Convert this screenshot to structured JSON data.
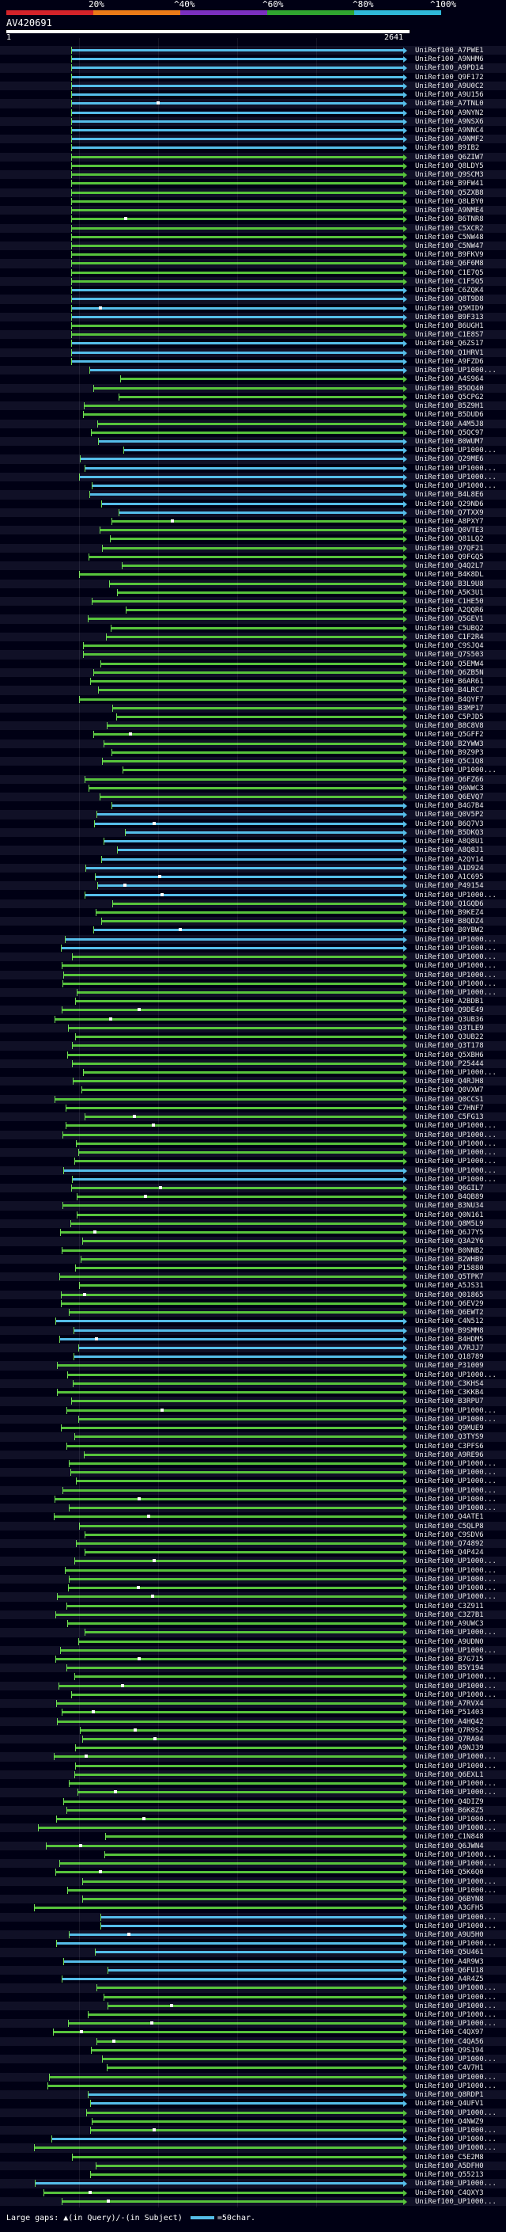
{
  "scale": {
    "labels": [
      "20%",
      "^40%",
      "^60%",
      "^80%",
      "^100%"
    ],
    "colors": [
      "#d4232a",
      "#ea7a18",
      "#7b2fbf",
      "#2fa52f",
      "#2fb8d8"
    ]
  },
  "query": {
    "id": "AV420691",
    "start": "1",
    "end": "2641"
  },
  "colors": {
    "green": "#57c33c",
    "cyan": "#55bde9",
    "magenta": "#d14cd1",
    "background": "#000014"
  },
  "hits": [
    "UniRef100_A7PWE1",
    "UniRef100_A9NHM6",
    "UniRef100_A9PD14",
    "UniRef100_Q9F172",
    "UniRef100_A9U0C2",
    "UniRef100_A9U156",
    "UniRef100_A7TNL0",
    "UniRef100_A9NYN2",
    "UniRef100_A9NSX6",
    "UniRef100_A9NNC4",
    "UniRef100_A9NMF2",
    "UniRef100_B9IB2",
    "UniRef100_Q6ZIW7",
    "UniRef100_Q8LDY5",
    "UniRef100_Q9SCM3",
    "UniRef100_B9FW41",
    "UniRef100_Q5ZXB8",
    "UniRef100_Q8LBY0",
    "UniRef100_A9NME4",
    "UniRef100_B6TNR8",
    "UniRef100_C5XCR2",
    "UniRef100_C5NW48",
    "UniRef100_C5NW47",
    "UniRef100_B9FKV9",
    "UniRef100_Q6F6M8",
    "UniRef100_C1E7Q5",
    "UniRef100_C1F5Q5",
    "UniRef100_C6ZQK4",
    "UniRef100_Q8T9D8",
    "UniRef100_Q5MID9",
    "UniRef100_B9F313",
    "UniRef100_B6UGH1",
    "UniRef100_C1E8S7",
    "UniRef100_Q6ZS17",
    "UniRef100_Q1HRV1",
    "UniRef100_A9FZD6",
    "UniRef100_UP1000...",
    "UniRef100_A4S964",
    "UniRef100_B5OQ40",
    "UniRef100_Q5CPG2",
    "UniRef100_B5Z9H1",
    "UniRef100_B5DUD6",
    "UniRef100_A4M5J8",
    "UniRef100_Q5QC97",
    "UniRef100_B0WUM7",
    "UniRef100_UP1000...",
    "UniRef100_Q29ME6",
    "UniRef100_UP1000...",
    "UniRef100_UP1000...",
    "UniRef100_UP1000...",
    "UniRef100_B4L8E6",
    "UniRef100_Q29ND6",
    "UniRef100_Q7TXX9",
    "UniRef100_A8PXY7",
    "UniRef100_Q0VTE3",
    "UniRef100_Q81LQ2",
    "UniRef100_Q7QF21",
    "UniRef100_Q9FGQ5",
    "UniRef100_Q4Q2L7",
    "UniRef100_B4K8DL",
    "UniRef100_B3L9U8",
    "UniRef100_A5K3U1",
    "UniRef100_C1HE50",
    "UniRef100_A2QQR6",
    "UniRef100_Q5GEV1",
    "UniRef100_C5UBQ2",
    "UniRef100_C1F2R4",
    "UniRef100_C9SJQ4",
    "UniRef100_Q7S503",
    "UniRef100_Q5EMW4",
    "UniRef100_Q6ZB5N",
    "UniRef100_B6AR61",
    "UniRef100_B4LRC7",
    "UniRef100_B4QYF7",
    "UniRef100_B3MP17",
    "UniRef100_C5PJD5",
    "UniRef100_B8C8V8",
    "UniRef100_Q5GFF2",
    "UniRef100_B2YWW3",
    "UniRef100_B9Z9P3",
    "UniRef100_Q5C1Q8",
    "UniRef100_UP1000...",
    "UniRef100_Q6FZ66",
    "UniRef100_Q6NWC3",
    "UniRef100_Q6EVQ7",
    "UniRef100_B4G7B4",
    "UniRef100_Q0V5P2",
    "UniRef100_B6Q7V3",
    "UniRef100_B5DKQ3",
    "UniRef100_A8Q8U1",
    "UniRef100_A8Q8J1",
    "UniRef100_A2QY14",
    "UniRef100_A1D924",
    "UniRef100_A1C695",
    "UniRef100_P49154",
    "UniRef100_UP1000...",
    "UniRef100_Q1GQD6",
    "UniRef100_B9KEZ4",
    "UniRef100_B8QDZ4",
    "UniRef100_B0YBW2",
    "UniRef100_UP1000...",
    "UniRef100_UP1000...",
    "UniRef100_UP1000...",
    "UniRef100_UP1000...",
    "UniRef100_UP1000...",
    "UniRef100_UP1000...",
    "UniRef100_UP1000...",
    "UniRef100_A2BDB1",
    "UniRef100_Q9DE49",
    "UniRef100_Q3UB36",
    "UniRef100_Q3TLE9",
    "UniRef100_Q3UB22",
    "UniRef100_Q3T178",
    "UniRef100_Q5XBH6",
    "UniRef100_P25444",
    "UniRef100_UP1000...",
    "UniRef100_Q4RJH8",
    "UniRef100_Q0VXW7",
    "UniRef100_Q0CCS1",
    "UniRef100_C7HNF7",
    "UniRef100_C5FG13",
    "UniRef100_UP1000...",
    "UniRef100_UP1000...",
    "UniRef100_UP1000...",
    "UniRef100_UP1000...",
    "UniRef100_UP1000...",
    "UniRef100_UP1000...",
    "UniRef100_UP1000...",
    "UniRef100_Q6GIL7",
    "UniRef100_B4QB89",
    "UniRef100_B3NU34",
    "UniRef100_Q0N161",
    "UniRef100_Q8M5L9",
    "UniRef100_Q6J7Y5",
    "UniRef100_Q3A2Y6",
    "UniRef100_B0NNB2",
    "UniRef100_B2WHB9",
    "UniRef100_P15880",
    "UniRef100_Q5TPK7",
    "UniRef100_A5JS31",
    "UniRef100_Q01865",
    "UniRef100_Q6EV29",
    "UniRef100_Q6EWT2",
    "UniRef100_C4N512",
    "UniRef100_B9SMM8",
    "UniRef100_B4HDM5",
    "UniRef100_A7RJJ7",
    "UniRef100_Q18789",
    "UniRef100_P31009",
    "UniRef100_UP1000...",
    "UniRef100_C3KHS4",
    "UniRef100_C3KKB4",
    "UniRef100_B3RPU7",
    "UniRef100_UP1000...",
    "UniRef100_UP1000...",
    "UniRef100_Q9MUE9",
    "UniRef100_Q3TYS9",
    "UniRef100_C3PFS6",
    "UniRef100_A9RE96",
    "UniRef100_UP1000...",
    "UniRef100_UP1000...",
    "UniRef100_UP1000...",
    "UniRef100_UP1000...",
    "UniRef100_UP1000...",
    "UniRef100_UP1000...",
    "UniRef100_Q4ATE1",
    "UniRef100_C5QLP8",
    "UniRef100_C9SDV6",
    "UniRef100_Q74892",
    "UniRef100_Q4P424",
    "UniRef100_UP1000...",
    "UniRef100_UP1000...",
    "UniRef100_UP1000...",
    "UniRef100_UP1000...",
    "UniRef100_UP1000...",
    "UniRef100_C3Z911",
    "UniRef100_C3Z7B1",
    "UniRef100_A9UWC3",
    "UniRef100_UP1000...",
    "UniRef100_A9UDN0",
    "UniRef100_UP1000...",
    "UniRef100_B7G715",
    "UniRef100_B5Y194",
    "UniRef100_UP1000...",
    "UniRef100_UP1000...",
    "UniRef100_UP1000...",
    "UniRef100_A7RVX4",
    "UniRef100_P51403",
    "UniRef100_A4HQ42",
    "UniRef100_Q7R9S2",
    "UniRef100_Q7RA04",
    "UniRef100_A9NJ39",
    "UniRef100_UP1000...",
    "UniRef100_UP1000...",
    "UniRef100_Q6EXL1",
    "UniRef100_UP1000...",
    "UniRef100_UP1000...",
    "UniRef100_Q4DIZ9",
    "UniRef100_B6K8Z5",
    "UniRef100_UP1000...",
    "UniRef100_UP1000...",
    "UniRef100_C1N848",
    "UniRef100_Q6JWN4",
    "UniRef100_UP1000...",
    "UniRef100_UP1000...",
    "UniRef100_Q5K6Q0",
    "UniRef100_UP1000...",
    "UniRef100_UP1000...",
    "UniRef100_Q6BYN8",
    "UniRef100_A3GFH5",
    "UniRef100_UP1000...",
    "UniRef100_UP1000...",
    "UniRef100_A9U5H0",
    "UniRef100_UP1000...",
    "UniRef100_Q5U461",
    "UniRef100_A4R9W3",
    "UniRef100_Q6FU18",
    "UniRef100_A4R4Z5",
    "UniRef100_UP1000...",
    "UniRef100_UP1000...",
    "UniRef100_UP1000...",
    "UniRef100_UP1000...",
    "UniRef100_UP1000...",
    "UniRef100_C4QX97",
    "UniRef100_C4QA56",
    "UniRef100_Q9S194",
    "UniRef100_UP1000...",
    "UniRef100_C4V7H1",
    "UniRef100_UP1000...",
    "UniRef100_UP1000...",
    "UniRef100_Q8RDP1",
    "UniRef100_Q4UFV1",
    "UniRef100_UP1000...",
    "UniRef100_Q4NWZ9",
    "UniRef100_UP1000...",
    "UniRef100_UP1000...",
    "UniRef100_UP1000...",
    "UniRef100_C5E2M8",
    "UniRef100_A5DFH0",
    "UniRef100_Q55213",
    "UniRef100_UP1000...",
    "UniRef100_C4QXY3",
    "UniRef100_UP1000..."
  ],
  "footer": {
    "prefix": "Large gaps:",
    "query_mark": "▲",
    "query_text": "(in Query)/",
    "subject_mark": "-",
    "subject_text": "(in Subject)",
    "legend_text": "=50char."
  }
}
